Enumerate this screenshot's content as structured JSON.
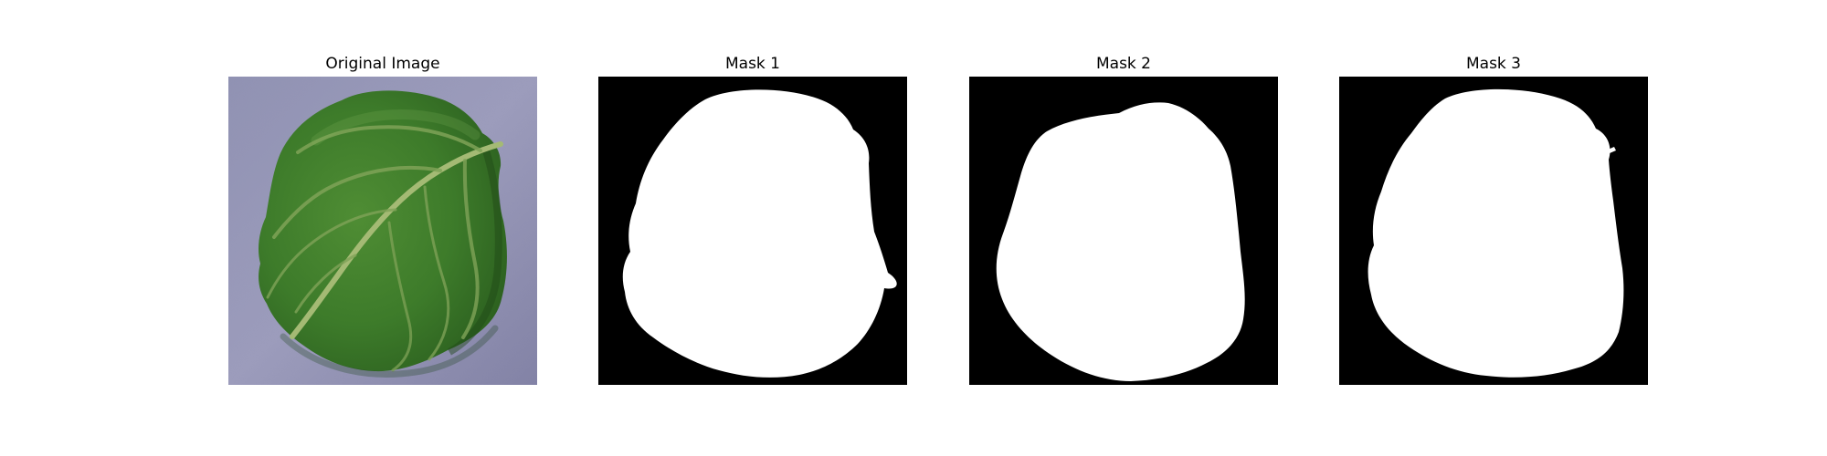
{
  "panels": [
    {
      "title": "Original Image"
    },
    {
      "title": "Mask 1"
    },
    {
      "title": "Mask 2"
    },
    {
      "title": "Mask 3"
    }
  ],
  "colors": {
    "background_original": "#9a9ab8",
    "leaf_dark": "#2f6a22",
    "leaf_mid": "#4f8b34",
    "vein": "#93ad63",
    "mask_background": "#000000",
    "mask_foreground": "#ffffff"
  }
}
